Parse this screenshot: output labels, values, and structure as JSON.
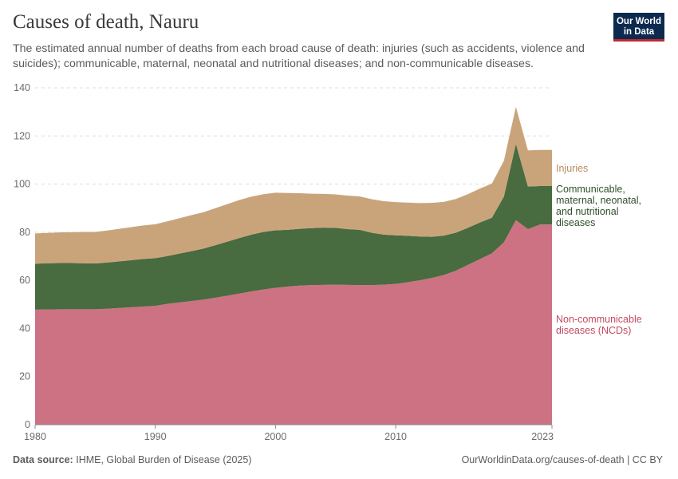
{
  "header": {
    "title": "Causes of death, Nauru",
    "subtitle": "The estimated annual number of deaths from each broad cause of death: injuries (such as accidents, violence and suicides); communicable, maternal, neonatal and nutritional diseases; and non-communicable diseases."
  },
  "logo": {
    "line1": "Our World",
    "line2": "in Data",
    "bg_color": "#0c2a4f",
    "accent_color": "#c0282e"
  },
  "footer": {
    "source_label": "Data source:",
    "source_text": "IHME, Global Burden of Disease (2025)",
    "url_text": "OurWorldinData.org/causes-of-death | CC BY"
  },
  "chart_data": {
    "type": "area",
    "stacked": true,
    "title": "Causes of death, Nauru",
    "xlabel": "",
    "ylabel": "",
    "xlim": [
      1980,
      2023
    ],
    "ylim": [
      0,
      140
    ],
    "y_ticks": [
      0,
      20,
      40,
      60,
      80,
      100,
      120,
      140
    ],
    "x_ticks": [
      "1980",
      "1990",
      "2000",
      "2010",
      "2023"
    ],
    "grid": "horizontal dashed",
    "x": [
      1980,
      1981,
      1982,
      1983,
      1984,
      1985,
      1986,
      1987,
      1988,
      1989,
      1990,
      1991,
      1992,
      1993,
      1994,
      1995,
      1996,
      1997,
      1998,
      1999,
      2000,
      2001,
      2002,
      2003,
      2004,
      2005,
      2006,
      2007,
      2008,
      2009,
      2010,
      2011,
      2012,
      2013,
      2014,
      2015,
      2016,
      2017,
      2018,
      2019,
      2020,
      2021,
      2022,
      2023
    ],
    "series": [
      {
        "name": "Non-communicable diseases (NCDs)",
        "legend_lines": [
          "Non-communicable",
          "diseases (NCDs)"
        ],
        "color": "#cd7282",
        "values": [
          47.8,
          47.9,
          48.0,
          48.0,
          48.0,
          48.0,
          48.2,
          48.5,
          48.8,
          49.1,
          49.4,
          50.2,
          50.8,
          51.4,
          52.0,
          52.8,
          53.6,
          54.5,
          55.4,
          56.2,
          56.9,
          57.4,
          57.8,
          58.0,
          58.1,
          58.2,
          58.1,
          58.0,
          58.0,
          58.2,
          58.5,
          59.2,
          60.0,
          61.0,
          62.2,
          64.0,
          66.4,
          68.8,
          71.2,
          75.8,
          85.0,
          81.3,
          83.2,
          83.2
        ]
      },
      {
        "name": "Communicable, maternal, neonatal, and nutritional diseases",
        "legend_lines": [
          "Communicable,",
          "maternal, neonatal,",
          "and nutritional",
          "diseases"
        ],
        "color": "#486b3f",
        "values": [
          19.1,
          19.2,
          19.2,
          19.2,
          19.1,
          19.0,
          19.2,
          19.4,
          19.6,
          19.8,
          19.8,
          19.9,
          20.3,
          20.7,
          21.2,
          21.8,
          22.5,
          23.1,
          23.6,
          23.9,
          23.9,
          23.6,
          23.6,
          23.7,
          23.8,
          23.6,
          23.2,
          23.0,
          21.8,
          20.8,
          20.2,
          19.3,
          18.2,
          17.1,
          16.4,
          15.8,
          15.4,
          15.2,
          14.8,
          19.0,
          31.7,
          17.7,
          16.0,
          16.0
        ]
      },
      {
        "name": "Injuries",
        "legend_lines": [
          "Injuries"
        ],
        "color": "#c9a47b",
        "values": [
          12.6,
          12.6,
          12.7,
          12.8,
          13.0,
          13.1,
          13.3,
          13.5,
          13.7,
          13.9,
          14.1,
          14.4,
          14.7,
          15.0,
          15.1,
          15.4,
          15.6,
          15.8,
          15.8,
          15.7,
          15.6,
          15.3,
          14.8,
          14.3,
          14.0,
          13.9,
          13.9,
          13.9,
          13.9,
          13.9,
          13.8,
          13.8,
          13.9,
          14.1,
          14.0,
          14.0,
          14.0,
          14.1,
          14.2,
          14.9,
          15.4,
          15.0,
          15.0,
          15.0
        ]
      }
    ]
  }
}
